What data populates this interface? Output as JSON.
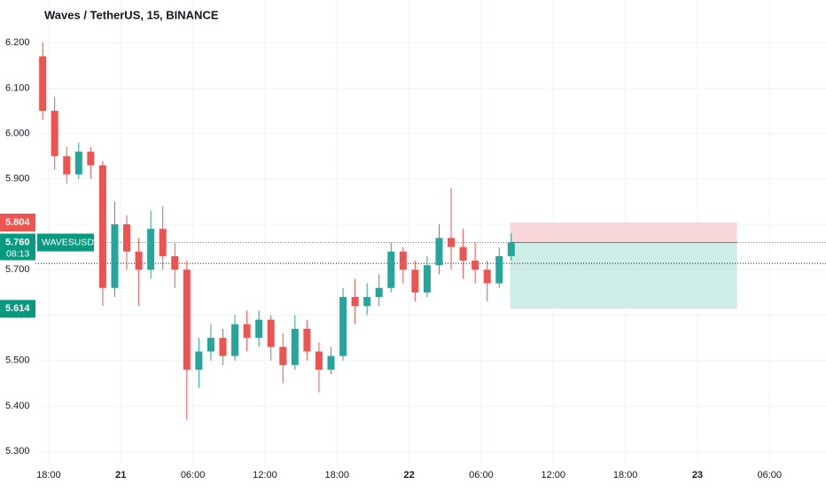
{
  "chart_data": {
    "type": "candlestick",
    "title": "Waves / TetherUS, 15, BINANCE",
    "symbol": "WAVESUSDT",
    "countdown": "08:13",
    "up_color": "#26a69a",
    "down_color": "#ef5350",
    "grid": true,
    "x": [
      -0.5,
      0.5,
      1.5,
      2.5,
      3.5,
      4.5,
      5.5,
      6.5,
      7.5,
      8.5,
      9.5,
      10.5,
      11.5,
      12.5,
      13.5,
      14.5,
      15.5,
      16.5,
      17.5,
      18.5,
      19.5,
      20.5,
      21.5,
      22.5,
      23.5,
      24.5,
      25.5,
      26.5,
      27.5,
      28.5,
      29.5,
      30.5,
      31.5,
      32.5,
      33.5,
      34.5,
      35.5,
      36.5,
      37.5,
      38.5
    ],
    "open": [
      6.17,
      6.05,
      5.95,
      5.91,
      5.96,
      5.93,
      5.66,
      5.8,
      5.74,
      5.7,
      5.79,
      5.73,
      5.7,
      5.48,
      5.52,
      5.55,
      5.51,
      5.58,
      5.55,
      5.59,
      5.53,
      5.49,
      5.57,
      5.52,
      5.48,
      5.51,
      5.64,
      5.62,
      5.64,
      5.66,
      5.74,
      5.7,
      5.65,
      5.71,
      5.77,
      5.75,
      5.72,
      5.7,
      5.67,
      5.73
    ],
    "high": [
      6.2,
      6.08,
      5.97,
      5.98,
      5.97,
      5.94,
      5.85,
      5.82,
      5.77,
      5.83,
      5.84,
      5.76,
      5.72,
      5.55,
      5.58,
      5.57,
      5.6,
      5.61,
      5.61,
      5.6,
      5.56,
      5.6,
      5.59,
      5.54,
      5.53,
      5.66,
      5.68,
      5.67,
      5.69,
      5.76,
      5.75,
      5.72,
      5.73,
      5.8,
      5.88,
      5.79,
      5.76,
      5.72,
      5.75,
      5.78
    ],
    "low": [
      6.03,
      5.92,
      5.89,
      5.9,
      5.9,
      5.62,
      5.64,
      5.7,
      5.62,
      5.68,
      5.7,
      5.66,
      5.37,
      5.44,
      5.5,
      5.49,
      5.5,
      5.52,
      5.53,
      5.5,
      5.45,
      5.48,
      5.5,
      5.43,
      5.47,
      5.5,
      5.58,
      5.6,
      5.62,
      5.65,
      5.67,
      5.63,
      5.64,
      5.69,
      5.7,
      5.68,
      5.67,
      5.63,
      5.66,
      5.72
    ],
    "close": [
      6.05,
      5.95,
      5.91,
      5.96,
      5.93,
      5.66,
      5.8,
      5.74,
      5.7,
      5.79,
      5.73,
      5.7,
      5.48,
      5.52,
      5.55,
      5.51,
      5.58,
      5.55,
      5.59,
      5.53,
      5.49,
      5.57,
      5.52,
      5.48,
      5.51,
      5.64,
      5.62,
      5.64,
      5.66,
      5.74,
      5.7,
      5.65,
      5.71,
      5.77,
      5.75,
      5.72,
      5.7,
      5.67,
      5.73,
      5.76
    ],
    "xlim": [
      -1.1,
      64.7
    ],
    "ylim": [
      5.275,
      6.294
    ],
    "xticks": [
      {
        "value": 0,
        "label": "18:00"
      },
      {
        "value": 6,
        "label": "21"
      },
      {
        "value": 12,
        "label": "06:00"
      },
      {
        "value": 18,
        "label": "12:00"
      },
      {
        "value": 24,
        "label": "18:00"
      },
      {
        "value": 30,
        "label": "22"
      },
      {
        "value": 36,
        "label": "06:00"
      },
      {
        "value": 42,
        "label": "12:00"
      },
      {
        "value": 48,
        "label": "18:00"
      },
      {
        "value": 54,
        "label": "23"
      },
      {
        "value": 60,
        "label": "06:00"
      }
    ],
    "yticks": [
      {
        "value": 5.3,
        "label": "5.300"
      },
      {
        "value": 5.4,
        "label": "5.400"
      },
      {
        "value": 5.5,
        "label": "5.500"
      },
      {
        "value": 5.6,
        "label": "5.600"
      },
      {
        "value": 5.7,
        "label": "5.700"
      },
      {
        "value": 5.8,
        "label": "5.800"
      },
      {
        "value": 5.9,
        "label": "5.900"
      },
      {
        "value": 6.0,
        "label": "6.000"
      },
      {
        "value": 6.1,
        "label": "6.100"
      },
      {
        "value": 6.2,
        "label": "6.200"
      }
    ],
    "last_price": {
      "value": 5.76,
      "label": "5.760"
    },
    "ref_line": 5.714,
    "position": {
      "stop": 5.804,
      "target": 5.614,
      "x_start": 38.4,
      "x_end": 57.3,
      "stop_color": "#f7c9cf",
      "target_color": "#c9ebe3"
    }
  }
}
